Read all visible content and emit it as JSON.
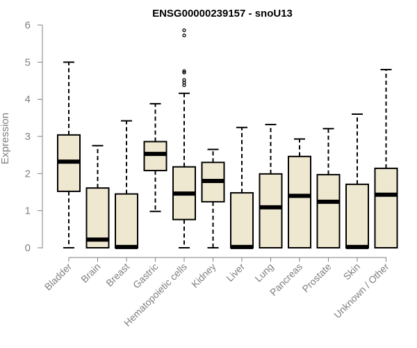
{
  "chart_data": {
    "type": "boxplot",
    "title": "ENSG00000239157 - snoU13",
    "xlabel": "",
    "ylabel": "Expression",
    "ylim": [
      0,
      6
    ],
    "yticks": [
      0,
      1,
      2,
      3,
      4,
      5,
      6
    ],
    "grid": false,
    "legend": "none",
    "box_color": "#efe8d0",
    "categories": [
      "Bladder",
      "Brain",
      "Breast",
      "Gastric",
      "Hematopoietic cells",
      "Kidney",
      "Liver",
      "Lung",
      "Pancreas",
      "Prostate",
      "Skin",
      "Unknown / Other"
    ],
    "boxes": [
      {
        "whisker_low": 0,
        "q1": 1.52,
        "median": 2.32,
        "q3": 3.04,
        "whisker_high": 5.0,
        "outliers": []
      },
      {
        "whisker_low": 0,
        "q1": 0,
        "median": 0.22,
        "q3": 1.61,
        "whisker_high": 2.75,
        "outliers": []
      },
      {
        "whisker_low": 0,
        "q1": 0,
        "median": 0.02,
        "q3": 1.45,
        "whisker_high": 3.42,
        "outliers": []
      },
      {
        "whisker_low": 0.98,
        "q1": 2.08,
        "median": 2.53,
        "q3": 2.86,
        "whisker_high": 3.88,
        "outliers": []
      },
      {
        "whisker_low": 0,
        "q1": 0.76,
        "median": 1.46,
        "q3": 2.18,
        "whisker_high": 4.16,
        "outliers": [
          4.38,
          4.45,
          4.52,
          4.72,
          4.76,
          5.72,
          5.86
        ]
      },
      {
        "whisker_low": 0,
        "q1": 1.24,
        "median": 1.8,
        "q3": 2.3,
        "whisker_high": 2.65,
        "outliers": []
      },
      {
        "whisker_low": 0,
        "q1": 0,
        "median": 0.02,
        "q3": 1.48,
        "whisker_high": 3.24,
        "outliers": []
      },
      {
        "whisker_low": 0,
        "q1": 0,
        "median": 1.09,
        "q3": 1.99,
        "whisker_high": 3.32,
        "outliers": []
      },
      {
        "whisker_low": 0,
        "q1": 0,
        "median": 1.4,
        "q3": 2.46,
        "whisker_high": 2.93,
        "outliers": []
      },
      {
        "whisker_low": 0,
        "q1": 0,
        "median": 1.24,
        "q3": 1.97,
        "whisker_high": 3.21,
        "outliers": []
      },
      {
        "whisker_low": 0,
        "q1": 0,
        "median": 0.02,
        "q3": 1.71,
        "whisker_high": 3.6,
        "outliers": []
      },
      {
        "whisker_low": 0,
        "q1": 0,
        "median": 1.43,
        "q3": 2.14,
        "whisker_high": 4.8,
        "outliers": []
      }
    ]
  }
}
